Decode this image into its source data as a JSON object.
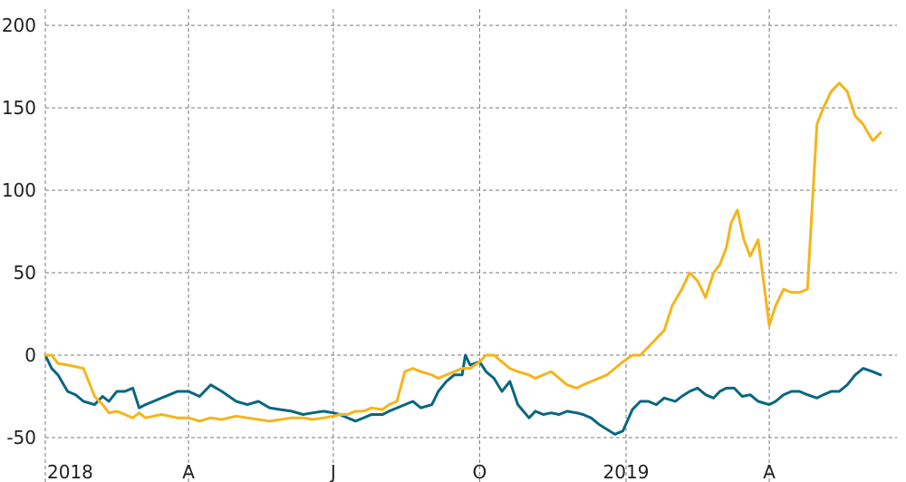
{
  "chart_data": {
    "type": "line",
    "title": "",
    "xlabel": "",
    "ylabel": "",
    "grid": true,
    "ylim": [
      -55,
      210
    ],
    "xlim": [
      "2018-01-01",
      "2019-06-16"
    ],
    "yticks": [
      {
        "value": 200,
        "label": "200"
      },
      {
        "value": 150,
        "label": "150"
      },
      {
        "value": 100,
        "label": "100"
      },
      {
        "value": 50,
        "label": "50"
      },
      {
        "value": 0,
        "label": "0"
      },
      {
        "value": -50,
        "label": "-50"
      }
    ],
    "xticks": [
      {
        "date": "2018-01-01",
        "label": "2018"
      },
      {
        "date": "2018-04-01",
        "label": "A"
      },
      {
        "date": "2018-07-01",
        "label": "J"
      },
      {
        "date": "2018-10-01",
        "label": "O"
      },
      {
        "date": "2019-01-01",
        "label": "2019"
      },
      {
        "date": "2019-04-01",
        "label": "A"
      }
    ],
    "series": [
      {
        "color": "#0a6680",
        "x": [
          "2018-01-01",
          "2018-01-05",
          "2018-01-09",
          "2018-01-15",
          "2018-01-20",
          "2018-01-25",
          "2018-02-01",
          "2018-02-06",
          "2018-02-10",
          "2018-02-15",
          "2018-02-20",
          "2018-02-25",
          "2018-03-01",
          "2018-03-05",
          "2018-03-10",
          "2018-03-15",
          "2018-03-20",
          "2018-03-25",
          "2018-04-01",
          "2018-04-08",
          "2018-04-15",
          "2018-04-22",
          "2018-05-01",
          "2018-05-08",
          "2018-05-15",
          "2018-05-22",
          "2018-05-29",
          "2018-06-05",
          "2018-06-12",
          "2018-06-18",
          "2018-06-25",
          "2018-07-01",
          "2018-07-05",
          "2018-07-10",
          "2018-07-15",
          "2018-07-20",
          "2018-07-25",
          "2018-08-01",
          "2018-08-05",
          "2018-08-10",
          "2018-08-15",
          "2018-08-20",
          "2018-08-25",
          "2018-09-01",
          "2018-09-05",
          "2018-09-10",
          "2018-09-15",
          "2018-09-20",
          "2018-09-22",
          "2018-09-25",
          "2018-10-01",
          "2018-10-05",
          "2018-10-10",
          "2018-10-15",
          "2018-10-20",
          "2018-10-25",
          "2018-11-01",
          "2018-11-05",
          "2018-11-10",
          "2018-11-15",
          "2018-11-20",
          "2018-11-25",
          "2018-12-01",
          "2018-12-05",
          "2018-12-10",
          "2018-12-15",
          "2018-12-20",
          "2018-12-25",
          "2018-12-30",
          "2019-01-05",
          "2019-01-10",
          "2019-01-15",
          "2019-01-20",
          "2019-01-25",
          "2019-02-01",
          "2019-02-05",
          "2019-02-10",
          "2019-02-15",
          "2019-02-20",
          "2019-02-25",
          "2019-03-01",
          "2019-03-05",
          "2019-03-10",
          "2019-03-15",
          "2019-03-20",
          "2019-03-25",
          "2019-04-01",
          "2019-04-05",
          "2019-04-10",
          "2019-04-15",
          "2019-04-20",
          "2019-04-25",
          "2019-05-01",
          "2019-05-05",
          "2019-05-10",
          "2019-05-15",
          "2019-05-20",
          "2019-05-25",
          "2019-05-30",
          "2019-06-05",
          "2019-06-10"
        ],
        "y": [
          0,
          -8,
          -12,
          -22,
          -24,
          -28,
          -30,
          -25,
          -28,
          -22,
          -22,
          -20,
          -32,
          -30,
          -28,
          -26,
          -24,
          -22,
          -22,
          -25,
          -18,
          -22,
          -28,
          -30,
          -28,
          -32,
          -33,
          -34,
          -36,
          -35,
          -34,
          -35,
          -36,
          -38,
          -40,
          -38,
          -36,
          -36,
          -34,
          -32,
          -30,
          -28,
          -32,
          -30,
          -22,
          -16,
          -12,
          -12,
          0,
          -6,
          -4,
          -10,
          -14,
          -22,
          -16,
          -30,
          -38,
          -34,
          -36,
          -35,
          -36,
          -34,
          -35,
          -36,
          -38,
          -42,
          -45,
          -48,
          -46,
          -33,
          -28,
          -28,
          -30,
          -26,
          -28,
          -25,
          -22,
          -20,
          -24,
          -26,
          -22,
          -20,
          -20,
          -25,
          -24,
          -28,
          -30,
          -28,
          -24,
          -22,
          -22,
          -24,
          -26,
          -24,
          -22,
          -22,
          -18,
          -12,
          -8,
          -10,
          -12
        ]
      },
      {
        "color": "#f5b51a",
        "x": [
          "2018-01-01",
          "2018-01-05",
          "2018-01-09",
          "2018-01-15",
          "2018-01-20",
          "2018-01-25",
          "2018-02-01",
          "2018-02-06",
          "2018-02-10",
          "2018-02-15",
          "2018-02-20",
          "2018-02-25",
          "2018-03-01",
          "2018-03-05",
          "2018-03-10",
          "2018-03-15",
          "2018-03-20",
          "2018-03-25",
          "2018-04-01",
          "2018-04-08",
          "2018-04-15",
          "2018-04-22",
          "2018-05-01",
          "2018-05-08",
          "2018-05-15",
          "2018-05-22",
          "2018-05-29",
          "2018-06-05",
          "2018-06-12",
          "2018-06-18",
          "2018-06-25",
          "2018-07-01",
          "2018-07-05",
          "2018-07-10",
          "2018-07-15",
          "2018-07-20",
          "2018-07-25",
          "2018-08-01",
          "2018-08-05",
          "2018-08-10",
          "2018-08-15",
          "2018-08-20",
          "2018-08-25",
          "2018-09-01",
          "2018-09-05",
          "2018-09-10",
          "2018-09-15",
          "2018-09-20",
          "2018-09-25",
          "2018-10-01",
          "2018-10-05",
          "2018-10-10",
          "2018-10-15",
          "2018-10-20",
          "2018-10-25",
          "2018-11-01",
          "2018-11-05",
          "2018-11-10",
          "2018-11-15",
          "2018-11-20",
          "2018-11-25",
          "2018-12-01",
          "2018-12-05",
          "2018-12-10",
          "2018-12-15",
          "2018-12-20",
          "2018-12-25",
          "2018-12-30",
          "2019-01-05",
          "2019-01-10",
          "2019-01-15",
          "2019-01-20",
          "2019-01-25",
          "2019-01-30",
          "2019-02-05",
          "2019-02-10",
          "2019-02-15",
          "2019-02-20",
          "2019-02-25",
          "2019-03-01",
          "2019-03-05",
          "2019-03-08",
          "2019-03-12",
          "2019-03-16",
          "2019-03-20",
          "2019-03-25",
          "2019-04-01",
          "2019-04-05",
          "2019-04-10",
          "2019-04-15",
          "2019-04-20",
          "2019-04-25",
          "2019-05-01",
          "2019-05-05",
          "2019-05-10",
          "2019-05-15",
          "2019-05-20",
          "2019-05-25",
          "2019-05-30",
          "2019-06-05",
          "2019-06-10"
        ],
        "y": [
          0,
          0,
          -5,
          -6,
          -7,
          -8,
          -25,
          -30,
          -35,
          -34,
          -36,
          -38,
          -35,
          -38,
          -37,
          -36,
          -37,
          -38,
          -38,
          -40,
          -38,
          -39,
          -37,
          -38,
          -39,
          -40,
          -39,
          -38,
          -38,
          -39,
          -38,
          -37,
          -36,
          -36,
          -34,
          -34,
          -32,
          -33,
          -30,
          -28,
          -10,
          -8,
          -10,
          -12,
          -14,
          -12,
          -10,
          -8,
          -8,
          -4,
          0,
          0,
          -4,
          -8,
          -10,
          -12,
          -14,
          -12,
          -10,
          -14,
          -18,
          -20,
          -18,
          -16,
          -14,
          -12,
          -8,
          -4,
          0,
          0,
          5,
          10,
          15,
          30,
          40,
          50,
          45,
          35,
          50,
          55,
          65,
          80,
          88,
          70,
          60,
          70,
          18,
          30,
          40,
          38,
          38,
          40,
          140,
          150,
          160,
          165,
          160,
          145,
          140,
          130,
          135
        ]
      }
    ]
  }
}
